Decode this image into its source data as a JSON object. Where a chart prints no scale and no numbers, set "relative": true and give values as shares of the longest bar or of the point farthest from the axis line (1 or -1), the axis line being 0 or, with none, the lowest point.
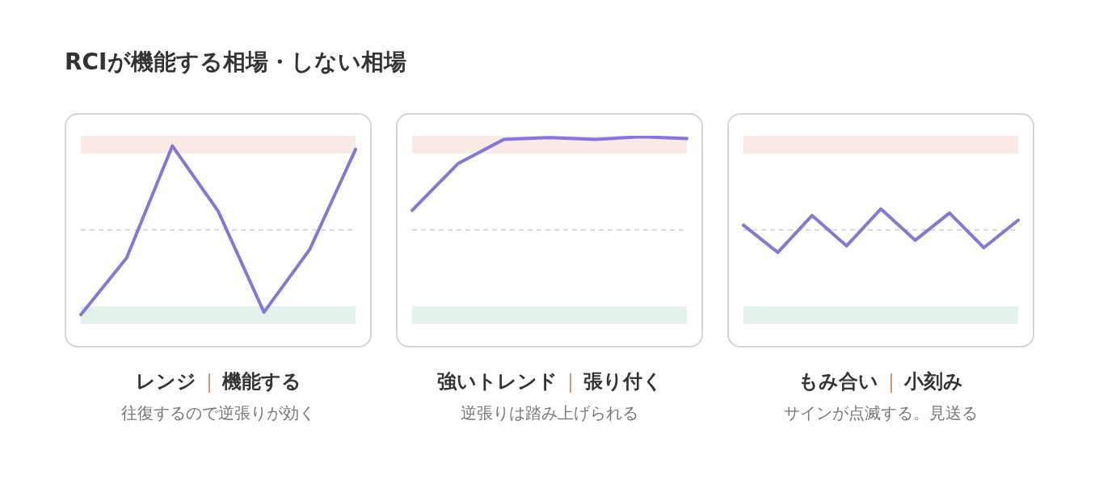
{
  "chart_data": [
    {
      "type": "line",
      "title": "RCIが機能する相場・しない相場",
      "xlabel": "レンジ｜機能する",
      "annotations": [
        "往復するので逆張りが効く"
      ],
      "relative": true,
      "categories": [
        null,
        null,
        null,
        null,
        null,
        null,
        null
      ],
      "series": [
        {
          "color": "#8377dc",
          "values": [
            -1,
            -0.33,
            0.99,
            0.22,
            -0.97,
            -0.23,
            0.95
          ]
        }
      ],
      "ref_lines": [
        {
          "axis": "y",
          "value": 0,
          "color": "#cccccc",
          "line_style": "dashed"
        }
      ],
      "bands": [
        {
          "axis": "y",
          "from": 0.9,
          "to": 1.11,
          "color": "#faeae6"
        },
        {
          "axis": "y",
          "from": -1.11,
          "to": -0.9,
          "color": "#e2f3ec"
        }
      ]
    },
    {
      "type": "line",
      "xlabel": "強いトレンド｜張り付く",
      "annotations": [
        "逆張りは踏み上げられる"
      ],
      "relative": true,
      "categories": [
        null,
        null,
        null,
        null,
        null,
        null,
        null
      ],
      "series": [
        {
          "color": "#8377dc",
          "values": [
            0.21,
            0.71,
            0.97,
            0.99,
            0.97,
            1,
            0.98
          ]
        }
      ],
      "ref_lines": [
        {
          "axis": "y",
          "value": 0,
          "color": "#cccccc",
          "line_style": "dashed"
        }
      ],
      "bands": [
        {
          "axis": "y",
          "from": 0.82,
          "to": 1.01,
          "color": "#faeae6"
        },
        {
          "axis": "y",
          "from": -1.01,
          "to": -0.82,
          "color": "#e2f3ec"
        }
      ]
    },
    {
      "type": "line",
      "xlabel": "もみ合い｜小刻み",
      "annotations": [
        "サインが点滅する。見送る"
      ],
      "relative": true,
      "categories": [
        null,
        null,
        null,
        null,
        null,
        null,
        null,
        null,
        null
      ],
      "series": [
        {
          "color": "#8377dc",
          "values": [
            0.21,
            -1,
            0.64,
            -0.71,
            0.93,
            -0.46,
            0.75,
            -0.79,
            0.43
          ]
        }
      ],
      "ref_lines": [
        {
          "axis": "y",
          "value": 0,
          "color": "#cccccc",
          "line_style": "dashed"
        }
      ],
      "bands": [
        {
          "axis": "y",
          "from": 3.39,
          "to": 4.18,
          "color": "#faeae6"
        },
        {
          "axis": "y",
          "from": -4.18,
          "to": -3.39,
          "color": "#e2f3ec"
        }
      ]
    }
  ]
}
